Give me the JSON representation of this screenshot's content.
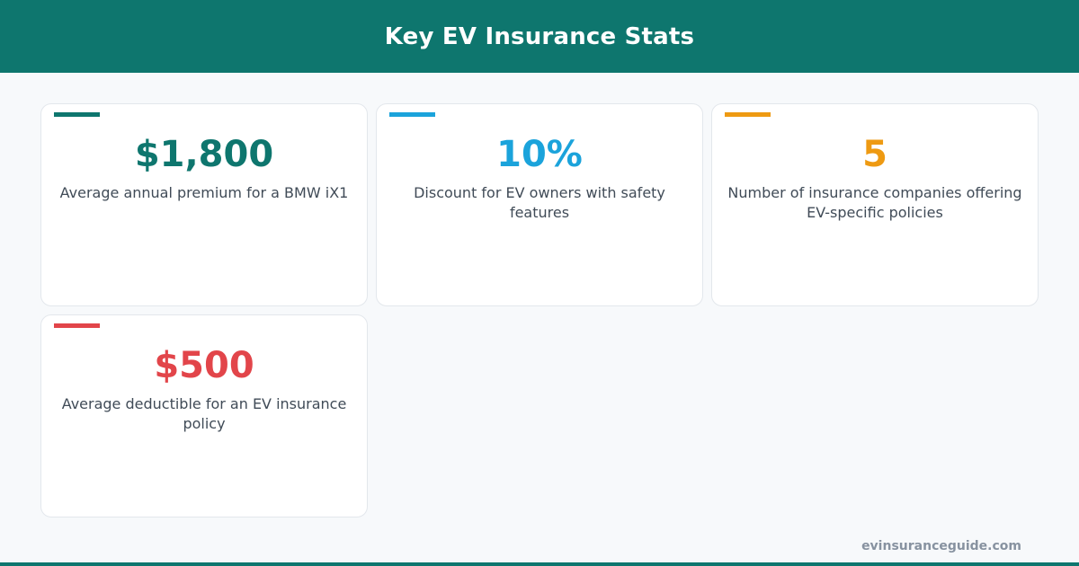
{
  "header": {
    "title": "Key EV Insurance Stats",
    "background_color": "#0e766e"
  },
  "stats": [
    {
      "value": "$1,800",
      "label": "Average annual premium for a BMW iX1",
      "color": "#0e766e"
    },
    {
      "value": "10%",
      "label": "Discount for EV owners with safety features",
      "color": "#1ba3db"
    },
    {
      "value": "5",
      "label": "Number of insurance companies offering EV-specific policies",
      "color": "#ee9a12"
    },
    {
      "value": "$500",
      "label": "Average deductible for an EV insurance policy",
      "color": "#e2454a"
    }
  ],
  "footer": {
    "site": "evinsuranceguide.com",
    "bar_color": "#0e766e"
  }
}
